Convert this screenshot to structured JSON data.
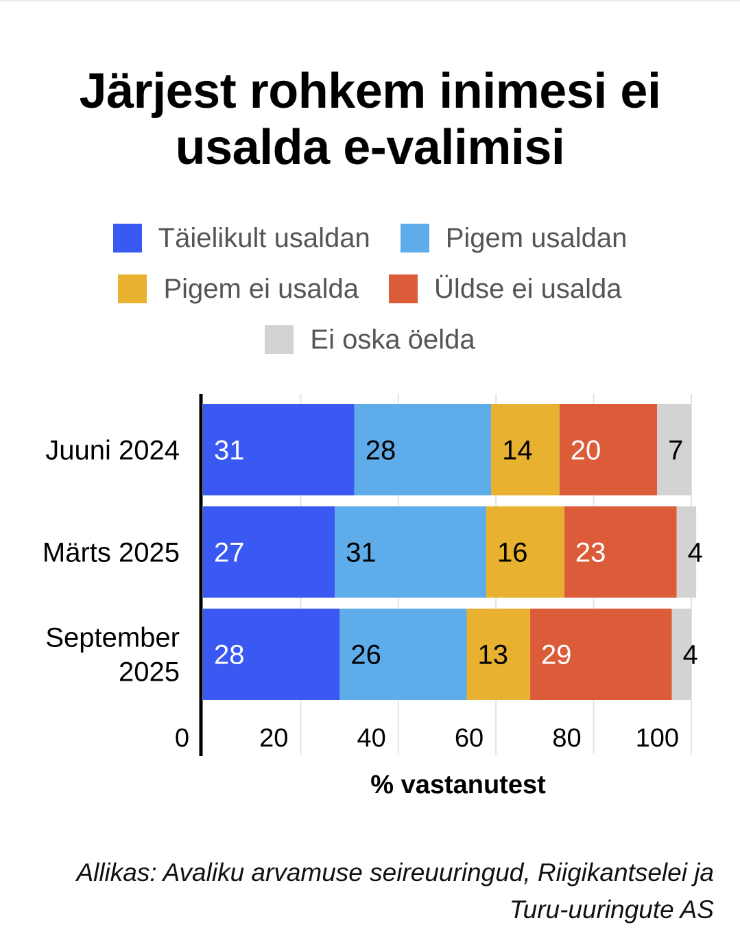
{
  "title": "Järjest rohkem inimesi ei usalda e-valimisi",
  "legend": [
    {
      "label": "Täielikult usaldan",
      "color": "#3a58f2"
    },
    {
      "label": "Pigem usaldan",
      "color": "#5eacea"
    },
    {
      "label": "Pigem ei usalda",
      "color": "#e8b230"
    },
    {
      "label": "Üldse ei usalda",
      "color": "#dc5c39"
    },
    {
      "label": "Ei oska öelda",
      "color": "#d3d3d3"
    }
  ],
  "source": "Allikas: Avaliku arvamuse seireuuringud, Riigikantselei ja Turu-uuringute AS",
  "chart_data": {
    "type": "bar",
    "orientation": "horizontal",
    "stacked": true,
    "categories": [
      [
        "Juuni 2024"
      ],
      [
        "Märts 2025"
      ],
      [
        "September",
        "2025"
      ]
    ],
    "series": [
      {
        "name": "Täielikult usaldan",
        "values": [
          31,
          27,
          28
        ],
        "color": "#3a58f2",
        "label_color": "#ffffff"
      },
      {
        "name": "Pigem usaldan",
        "values": [
          28,
          31,
          26
        ],
        "color": "#5eacea",
        "label_color": "#000000"
      },
      {
        "name": "Pigem ei usalda",
        "values": [
          14,
          16,
          13
        ],
        "color": "#e8b230",
        "label_color": "#000000"
      },
      {
        "name": "Üldse ei usalda",
        "values": [
          20,
          23,
          29
        ],
        "color": "#dc5c39",
        "label_color": "#ffffff"
      },
      {
        "name": "Ei oska öelda",
        "values": [
          7,
          4,
          4
        ],
        "color": "#d3d3d3",
        "label_color": "#000000"
      }
    ],
    "xlabel": "% vastanutest",
    "xlim": [
      0,
      100
    ],
    "xticks": [
      0,
      20,
      40,
      60,
      80,
      100
    ],
    "grid": true,
    "legend_position": "top-center"
  }
}
